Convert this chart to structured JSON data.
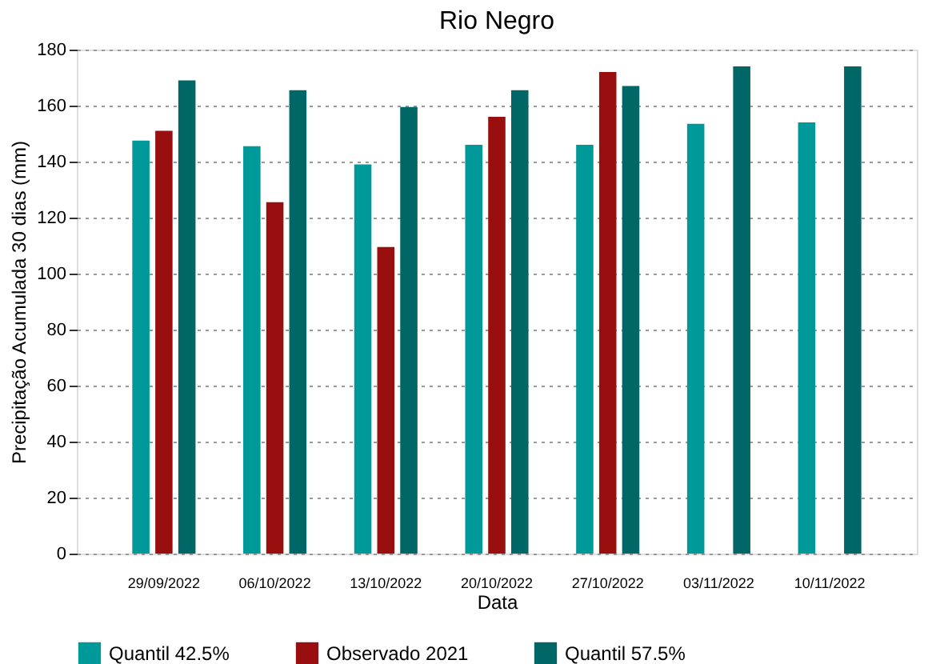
{
  "chart_data": {
    "type": "bar",
    "title": "Rio Negro",
    "xlabel": "Data",
    "ylabel": "Precipitação Acumulada 30 dias (mm)",
    "categories": [
      "29/09/2022",
      "06/10/2022",
      "13/10/2022",
      "20/10/2022",
      "27/10/2022",
      "03/11/2022",
      "10/11/2022"
    ],
    "series": [
      {
        "name": "Quantil 42.5%",
        "color": "#009999",
        "values": [
          147.5,
          145.5,
          139,
          146,
          146,
          153.5,
          154
        ]
      },
      {
        "name": "Observado 2021",
        "color": "#990f0f",
        "values": [
          151,
          125.5,
          109.5,
          156,
          172,
          null,
          null
        ]
      },
      {
        "name": "Quantil 57.5%",
        "color": "#006666",
        "values": [
          169,
          165.5,
          159.5,
          165.5,
          167,
          174,
          174
        ]
      }
    ],
    "ylim": [
      0,
      180
    ],
    "yticks": [
      0,
      20,
      40,
      60,
      80,
      100,
      120,
      140,
      160,
      180
    ],
    "grid": "y",
    "legend": "bottom"
  }
}
